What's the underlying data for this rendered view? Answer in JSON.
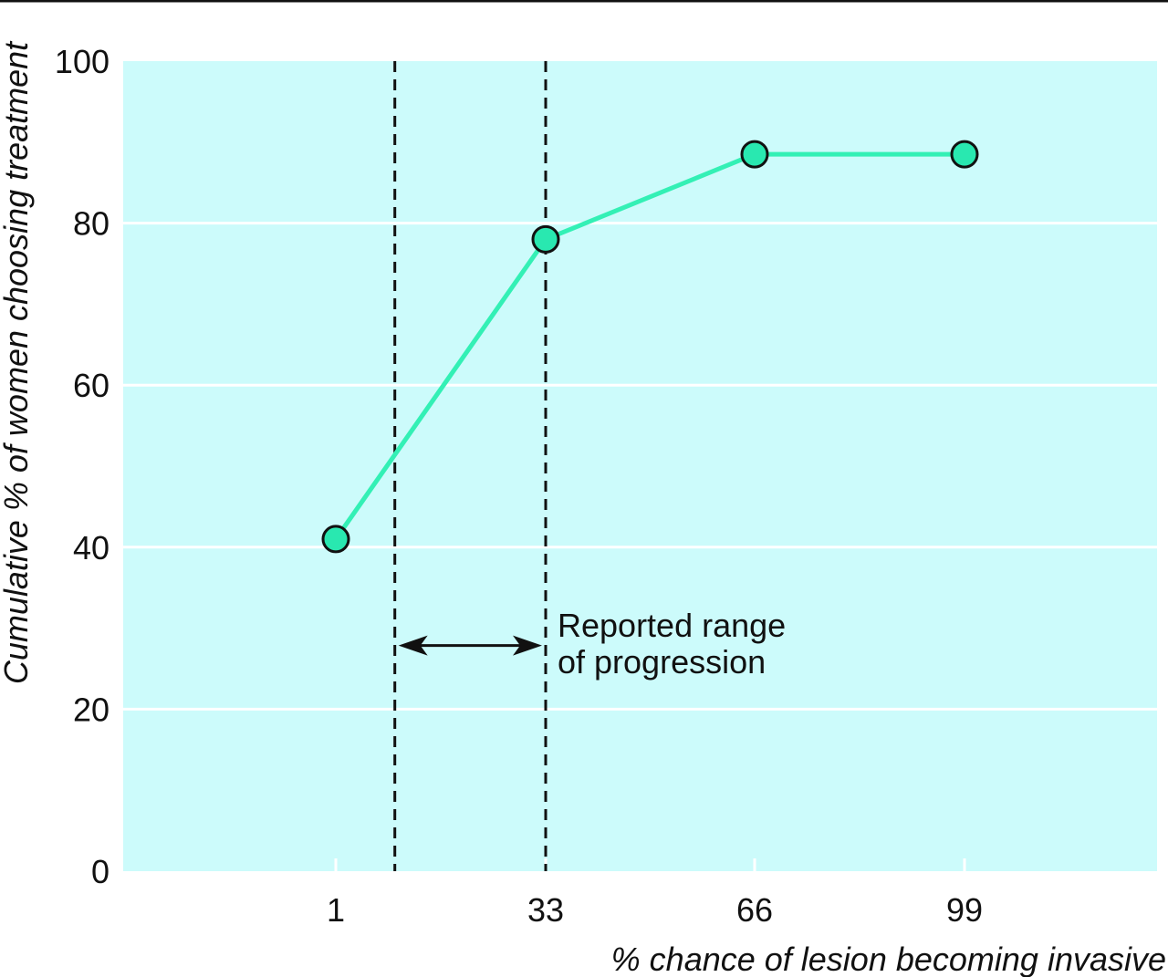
{
  "chart_data": {
    "type": "line",
    "xlabel": "% chance of lesion becoming invasive",
    "ylabel": "Cumulative % of women choosing treatment",
    "categories": [
      "1",
      "33",
      "66",
      "99"
    ],
    "series": [
      {
        "values": [
          41,
          78,
          88.5,
          88.5
        ]
      }
    ],
    "ylim": [
      0,
      100
    ],
    "yticks": [
      0,
      20,
      40,
      60,
      80,
      100
    ],
    "grid": "horizontal",
    "reference_lines": [
      {
        "x": 10,
        "style": "dashed"
      },
      {
        "x": 33,
        "style": "dashed"
      }
    ],
    "annotation": {
      "lines": [
        "Reported range",
        "of progression"
      ],
      "arrow_from_x": 10,
      "arrow_to_x": 33,
      "arrow_y": 30
    },
    "colors": {
      "plot_background": "#ccfbfb",
      "line": "#33f0b5",
      "marker_fill": "#29e8b0",
      "marker_stroke": "#111111",
      "gridline": "#ffffff",
      "reference_line": "#111111"
    }
  }
}
